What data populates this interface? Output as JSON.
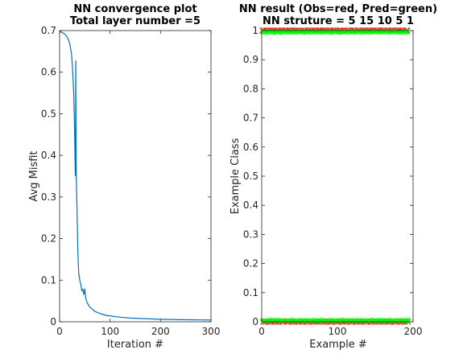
{
  "chart_data": [
    {
      "type": "line",
      "title": "NN convergence plot",
      "subtitle": "Total layer number =5",
      "xlabel": "Iteration #",
      "ylabel": "Avg Misfit",
      "xlim": [
        0,
        300
      ],
      "ylim": [
        0,
        0.7
      ],
      "xticks": [
        "0",
        "100",
        "200",
        "300"
      ],
      "yticks": [
        "0",
        "0.1",
        "0.2",
        "0.3",
        "0.4",
        "0.5",
        "0.6",
        "0.7"
      ],
      "grid": false,
      "color": "#0072bd",
      "x": [
        1,
        5,
        10,
        15,
        20,
        24,
        26,
        28,
        29,
        30,
        30.5,
        31,
        31.5,
        32,
        33,
        34,
        35,
        36,
        37,
        38,
        40,
        42,
        44,
        46,
        48,
        50,
        52,
        55,
        60,
        65,
        70,
        80,
        90,
        100,
        120,
        140,
        160,
        180,
        200,
        220,
        240,
        260,
        280,
        300
      ],
      "y": [
        0.698,
        0.695,
        0.692,
        0.685,
        0.67,
        0.64,
        0.6,
        0.55,
        0.5,
        0.44,
        0.4,
        0.36,
        0.35,
        0.628,
        0.35,
        0.3,
        0.24,
        0.18,
        0.14,
        0.115,
        0.1,
        0.09,
        0.075,
        0.078,
        0.065,
        0.08,
        0.055,
        0.045,
        0.035,
        0.03,
        0.025,
        0.02,
        0.016,
        0.014,
        0.011,
        0.009,
        0.008,
        0.007,
        0.006,
        0.0055,
        0.005,
        0.0048,
        0.0045,
        0.0042
      ]
    },
    {
      "type": "scatter",
      "title": "NN result (Obs=red, Pred=green)",
      "subtitle": "NN struture = 5 15 10 5 1",
      "xlabel": "Example #",
      "ylabel": "Example Class",
      "xlim": [
        0,
        200
      ],
      "ylim": [
        0,
        1
      ],
      "xticks": [
        "0",
        "100",
        "200"
      ],
      "yticks": [
        "0",
        "0.1",
        "0.2",
        "0.3",
        "0.4",
        "0.5",
        "0.6",
        "0.7",
        "0.8",
        "0.9",
        "1"
      ],
      "grid": false,
      "series": [
        {
          "name": "Obs",
          "color": "#ff0000",
          "marker": "x",
          "x": [
            1,
            2,
            3,
            5,
            6,
            8,
            10,
            11,
            13,
            14,
            16,
            17,
            19,
            20,
            22,
            23,
            25,
            27,
            28,
            30,
            32,
            33,
            35,
            36,
            38,
            40,
            41,
            43,
            44,
            46,
            48,
            49,
            51,
            53,
            54,
            56,
            57,
            59,
            61,
            62,
            64,
            66,
            67,
            69,
            70,
            72,
            74,
            75,
            77,
            78,
            80,
            82,
            83,
            85,
            86,
            88,
            90,
            91,
            93,
            94,
            96,
            98,
            99,
            101,
            103,
            104,
            106,
            107,
            109,
            111,
            112,
            114,
            115,
            117,
            119,
            120,
            122,
            123,
            125,
            127,
            128,
            130,
            131,
            133,
            135,
            136,
            138,
            139,
            141,
            143,
            144,
            146,
            147,
            149,
            151,
            152,
            154,
            155,
            157,
            159,
            160,
            162,
            163,
            165,
            167,
            168,
            170,
            171,
            173,
            175,
            176,
            178,
            179,
            181,
            183,
            184,
            186,
            187,
            189,
            191,
            192,
            193
          ],
          "y": [
            1,
            0,
            1,
            0,
            1,
            1,
            0,
            1,
            0,
            1,
            1,
            0,
            1,
            0,
            1,
            0,
            1,
            1,
            0,
            1,
            0,
            1,
            0,
            1,
            1,
            0,
            1,
            0,
            1,
            1,
            0,
            1,
            0,
            1,
            0,
            1,
            1,
            0,
            1,
            0,
            1,
            1,
            0,
            1,
            0,
            1,
            0,
            1,
            1,
            0,
            1,
            0,
            1,
            1,
            0,
            1,
            0,
            1,
            0,
            1,
            1,
            0,
            1,
            0,
            1,
            1,
            0,
            1,
            0,
            1,
            0,
            1,
            1,
            0,
            1,
            0,
            1,
            1,
            0,
            1,
            0,
            1,
            0,
            1,
            1,
            0,
            1,
            0,
            1,
            1,
            0,
            1,
            0,
            1,
            0,
            1,
            1,
            0,
            1,
            0,
            1,
            1,
            0,
            1,
            0,
            1,
            0,
            1,
            1,
            0,
            1,
            0,
            1,
            1,
            0,
            1,
            0,
            1,
            0,
            1,
            1,
            0
          ]
        },
        {
          "name": "Pred",
          "color": "#00ff00",
          "marker": "*",
          "x": [
            1,
            2,
            3,
            5,
            6,
            8,
            10,
            11,
            13,
            14,
            16,
            17,
            19,
            20,
            22,
            23,
            25,
            27,
            28,
            30,
            32,
            33,
            35,
            36,
            38,
            40,
            41,
            43,
            44,
            46,
            48,
            49,
            51,
            53,
            54,
            56,
            57,
            59,
            61,
            62,
            64,
            66,
            67,
            69,
            70,
            72,
            74,
            75,
            77,
            78,
            80,
            82,
            83,
            85,
            86,
            88,
            90,
            91,
            93,
            94,
            96,
            98,
            99,
            101,
            103,
            104,
            106,
            107,
            109,
            111,
            112,
            114,
            115,
            117,
            119,
            120,
            122,
            123,
            125,
            127,
            128,
            130,
            131,
            133,
            135,
            136,
            138,
            139,
            141,
            143,
            144,
            146,
            147,
            149,
            151,
            152,
            154,
            155,
            157,
            159,
            160,
            162,
            163,
            165,
            167,
            168,
            170,
            171,
            173,
            175,
            176,
            178,
            179,
            181,
            183,
            184,
            186,
            187,
            189,
            191,
            192,
            193
          ],
          "y": [
            0.995,
            0.004,
            0.996,
            0.003,
            0.994,
            0.997,
            0.005,
            0.995,
            0.004,
            0.996,
            0.993,
            0.006,
            0.995,
            0.003,
            0.997,
            0.004,
            0.994,
            0.996,
            0.005,
            0.995,
            0.004,
            0.996,
            0.003,
            0.995,
            0.997,
            0.005,
            0.994,
            0.004,
            0.996,
            0.995,
            0.003,
            0.997,
            0.004,
            0.995,
            0.005,
            0.994,
            0.996,
            0.004,
            0.995,
            0.003,
            0.997,
            0.994,
            0.005,
            0.996,
            0.004,
            0.995,
            0.003,
            0.997,
            0.994,
            0.005,
            0.996,
            0.004,
            0.995,
            0.996,
            0.003,
            0.997,
            0.005,
            0.994,
            0.004,
            0.996,
            0.995,
            0.003,
            0.997,
            0.004,
            0.995,
            0.994,
            0.005,
            0.996,
            0.004,
            0.995,
            0.003,
            0.997,
            0.994,
            0.005,
            0.996,
            0.004,
            0.995,
            0.996,
            0.003,
            0.997,
            0.005,
            0.994,
            0.004,
            0.996,
            0.995,
            0.003,
            0.997,
            0.004,
            0.995,
            0.994,
            0.005,
            0.996,
            0.004,
            0.995,
            0.003,
            0.997,
            0.994,
            0.005,
            0.996,
            0.004,
            0.995,
            0.996,
            0.003,
            0.997,
            0.005,
            0.994,
            0.004,
            0.996,
            0.995,
            0.003,
            0.997,
            0.004,
            0.995,
            0.994,
            0.005,
            0.996,
            0.004,
            0.995,
            0.003,
            0.997,
            0.994,
            0.005
          ]
        }
      ]
    }
  ]
}
